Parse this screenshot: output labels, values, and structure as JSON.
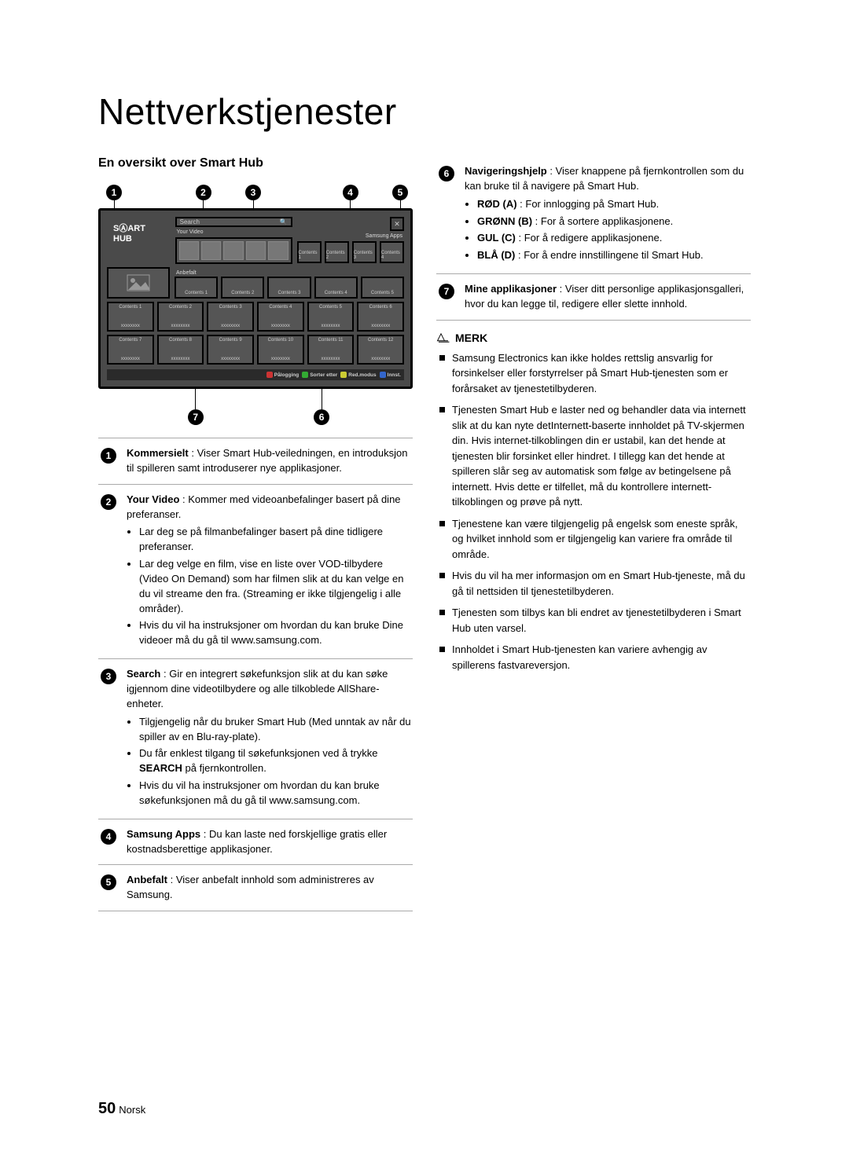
{
  "title": "Nettverkstjenester",
  "subtitle": "En oversikt over Smart Hub",
  "screenshot": {
    "brand": "SⒶART HUB",
    "search_label": "Search",
    "apps_label": "Samsung Apps",
    "yourvideo_label": "Your Video",
    "anbefalt_label": "Anbefalt",
    "close_char": "✕",
    "top_tiles": [
      "Contents 1",
      "Contents 2",
      "Contents 3",
      "Contents 4"
    ],
    "rec_tiles": [
      "Contents 1",
      "Contents 2",
      "Contents 3",
      "Contents 4",
      "Contents 5"
    ],
    "grid_row1": [
      "Contents 1",
      "Contents 2",
      "Contents 3",
      "Contents 4",
      "Contents 5",
      "Contents 6"
    ],
    "grid_row2": [
      "Contents 7",
      "Contents 8",
      "Contents 9",
      "Contents 10",
      "Contents 11",
      "Contents 12"
    ],
    "grid_sub": "xxxxxxxx",
    "footer": {
      "a": "Pålogging",
      "b": "Sorter etter",
      "c": "Red.modus",
      "d": "Innst."
    }
  },
  "callouts_top": [
    "1",
    "2",
    "3",
    "4",
    "5"
  ],
  "callouts_bottom_left": "7",
  "callouts_bottom_right": "6",
  "items": [
    {
      "num": "1",
      "lead": "Kommersielt",
      "desc": " : Viser Smart Hub-veiledningen, en introduksjon til spilleren samt introduserer nye applikasjoner.",
      "bullets": []
    },
    {
      "num": "2",
      "lead": "Your Video",
      "desc": " : Kommer med videoanbefalinger basert på dine preferanser.",
      "bullets": [
        "Lar deg se på filmanbefalinger basert på dine tidligere preferanser.",
        "Lar deg velge en film, vise en liste over VOD-tilbydere (Video On Demand) som har filmen slik at du kan velge en du vil streame den fra. (Streaming er ikke tilgjengelig i alle områder).",
        "Hvis du vil ha instruksjoner om hvordan du kan bruke Dine videoer må du gå til www.samsung.com."
      ]
    },
    {
      "num": "3",
      "lead": "Search",
      "desc": " : Gir en integrert søkefunksjon slik at du kan søke igjennom dine videotilbydere og alle tilkoblede AllShare-enheter.",
      "bullets": [
        "Tilgjengelig når du bruker Smart Hub (Med unntak av når du spiller av en Blu-ray-plate).",
        "Du får enklest tilgang til søkefunksjonen ved å trykke SEARCH på fjernkontrollen.",
        "Hvis du vil ha instruksjoner om hvordan du kan bruke søkefunksjonen må du gå til www.samsung.com."
      ]
    },
    {
      "num": "4",
      "lead": "Samsung Apps",
      "desc": " : Du kan laste ned forskjellige gratis eller kostnadsberettige applikasjoner.",
      "bullets": []
    },
    {
      "num": "5",
      "lead": "Anbefalt",
      "desc": " : Viser anbefalt innhold som administreres av Samsung.",
      "bullets": []
    }
  ],
  "items_right": [
    {
      "num": "6",
      "lead": "Navigeringshjelp",
      "desc": " : Viser knappene på fjernkontrollen som du kan bruke til å navigere på Smart Hub.",
      "bullets": [
        "RØD (A) : For innlogging på Smart Hub.",
        "GRØNN (B) : For å sortere applikasjonene.",
        "GUL (C) : For å redigere applikasjonene.",
        "BLÅ (D) : For å endre innstillingene til Smart Hub."
      ],
      "bullet_bold": [
        "RØD (A)",
        "GRØNN (B)",
        "GUL (C)",
        "BLÅ (D)"
      ]
    },
    {
      "num": "7",
      "lead": "Mine applikasjoner",
      "desc": " : Viser ditt personlige applikasjonsgalleri, hvor du kan legge til, redigere eller slette innhold.",
      "bullets": []
    }
  ],
  "merk": {
    "heading": "MERK",
    "notes": [
      "Samsung Electronics kan ikke holdes rettslig ansvarlig for forsinkelser eller forstyrrelser på Smart Hub-tjenesten som er forårsaket av tjenestetilbyderen.",
      "Tjenesten Smart Hub e laster ned og behandler data via internett slik at du kan nyte detInternett-baserte innholdet på TV-skjermen din. Hvis internet-tilkoblingen din er ustabil, kan det hende at tjenesten blir forsinket eller hindret. I tillegg kan det hende at spilleren slår seg av automatisk som følge av betingelsene på internett. Hvis dette er tilfellet, må du kontrollere internett-tilkoblingen og prøve på nytt.",
      "Tjenestene kan være tilgjengelig på engelsk som eneste språk, og hvilket innhold som er tilgjengelig kan variere fra område til område.",
      "Hvis du vil ha mer informasjon om en Smart Hub-tjeneste, må du gå til nettsiden til tjenestetilbyderen.",
      "Tjenesten som tilbys kan bli endret av tjenestetilbyderen i Smart Hub uten varsel.",
      "Innholdet i Smart Hub-tjenesten kan variere avhengig av spillerens fastvareversjon."
    ]
  },
  "footer": {
    "page": "50",
    "lang": "Norsk"
  }
}
